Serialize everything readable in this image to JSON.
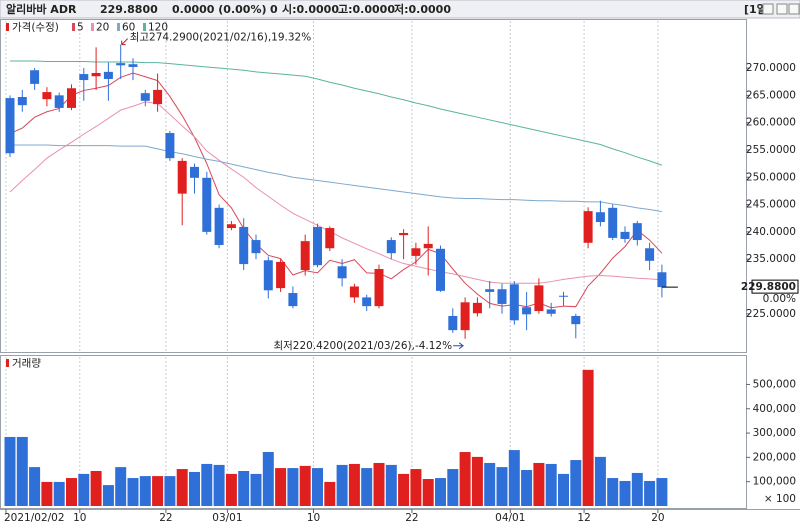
{
  "header": {
    "name": "알리바바 ADR",
    "price": "229.8800",
    "change": "0.0000 (0.00%)",
    "volume": "0",
    "open": "시:0.0000",
    "high": "고:0.0000",
    "low": "저:0.0000",
    "period": "[1일]"
  },
  "chart_data": [
    {
      "type": "candlestick",
      "legend_title": "가격(수정)",
      "up_color": "#e0201f",
      "down_color": "#2f6fd8",
      "open": [
        264.5,
        264.7,
        269.6,
        264.3,
        265,
        262.7,
        268.9,
        268.5,
        269.3,
        270.9,
        270.7,
        265.4,
        263.4,
        258.1,
        247,
        251.9,
        249.9,
        244.4,
        240.7,
        240.9,
        238.5,
        234.8,
        229.7,
        228.8,
        233,
        240.9,
        237,
        233.7,
        228,
        228,
        226.4,
        238.5,
        239.4,
        235.6,
        237,
        236.9,
        224.6,
        222,
        225.1,
        229.5,
        229.5,
        230.4,
        226.2,
        225.5,
        225.8,
        228.3,
        224.6,
        238,
        243.6,
        244.4,
        240,
        241.6,
        237,
        232.6
      ],
      "high": [
        265,
        266,
        270,
        266.5,
        265.5,
        267,
        270,
        273.8,
        271,
        274.29,
        271.8,
        266,
        269,
        258.5,
        253.5,
        252.5,
        251,
        245,
        242,
        242.5,
        239.5,
        235.5,
        235,
        230,
        239.5,
        241.5,
        241,
        235,
        230.5,
        228.5,
        234,
        239,
        240.5,
        238,
        241,
        237.5,
        226,
        228,
        228,
        231,
        230.5,
        231,
        229,
        231.5,
        227,
        229,
        225,
        244.5,
        245.7,
        245,
        241,
        242,
        238,
        234
      ],
      "low": [
        253.7,
        262,
        266,
        263,
        262,
        262.3,
        264,
        266,
        264,
        268,
        267.8,
        263,
        262,
        253,
        241.2,
        247,
        239.5,
        237,
        240.3,
        233,
        235,
        227.8,
        229,
        226,
        232,
        233.5,
        236.5,
        230,
        227,
        225.5,
        226,
        235,
        235,
        234,
        232,
        229,
        221.5,
        220.42,
        224.5,
        226,
        225,
        223,
        222,
        225,
        224.5,
        226.5,
        220.5,
        237,
        241,
        238.5,
        238,
        237.5,
        233,
        228
      ],
      "close": [
        254.4,
        263.2,
        267.1,
        265.6,
        262.7,
        266.3,
        267.8,
        269.1,
        268,
        270.5,
        270.2,
        264,
        266,
        253.5,
        253,
        249.9,
        240,
        237.6,
        241.4,
        234.1,
        236.1,
        229.3,
        234.5,
        226.4,
        238.3,
        233.9,
        240.7,
        231.5,
        230,
        226.4,
        233.2,
        236.1,
        239.8,
        237,
        237.8,
        229.2,
        222,
        227.1,
        227,
        229,
        226.8,
        223.8,
        224.9,
        230.2,
        225,
        228.2,
        223.1,
        243.8,
        241.8,
        238.9,
        238.7,
        238.5,
        234.7,
        229.88
      ],
      "series": [
        {
          "name": "5",
          "color": "#d9485a",
          "values": [
            258,
            259,
            261,
            262,
            262.6,
            265,
            265.9,
            266.3,
            266.8,
            268.3,
            269.1,
            268.4,
            267.7,
            264.8,
            261.3,
            257.3,
            252.5,
            246.8,
            244.4,
            240.6,
            237.8,
            235.7,
            235.1,
            232.1,
            232.9,
            232.5,
            234.8,
            234.2,
            234.9,
            232.5,
            232.4,
            231.4,
            233.1,
            234.5,
            236.8,
            236,
            233.2,
            230.6,
            228.6,
            226.9,
            226.4,
            226.7,
            226.3,
            227,
            226.1,
            226.4,
            226.3,
            230.1,
            232.4,
            235.2,
            237.3,
            240.3,
            238.5,
            236.1
          ]
        },
        {
          "name": "20",
          "color": "#e890b0",
          "values": [
            247.3,
            249.4,
            251.4,
            253.5,
            255,
            256.4,
            257.9,
            259.3,
            260.8,
            262.3,
            263,
            263.8,
            263.5,
            261.5,
            259.4,
            257.4,
            254.8,
            253.1,
            251.5,
            250,
            248.1,
            246.5,
            244.9,
            243.4,
            242.3,
            241.2,
            240.1,
            238.9,
            237.9,
            236.9,
            236,
            235,
            234.2,
            233.7,
            233.2,
            232.7,
            232.3,
            231.8,
            231.3,
            230.8,
            230.6,
            230.6,
            230.6,
            230.6,
            230.9,
            231.3,
            231.6,
            231.9,
            232,
            231.9,
            231.7,
            231.5,
            231.4,
            231.2
          ]
        },
        {
          "name": "60",
          "color": "#7fa8cc",
          "values": [
            255.9,
            255.9,
            255.9,
            255.9,
            255.8,
            255.8,
            255.8,
            255.8,
            255.8,
            255.7,
            255.7,
            255.7,
            255.2,
            254.7,
            254.3,
            253.8,
            253.3,
            252.9,
            252.4,
            251.9,
            251.4,
            250.9,
            250.5,
            250,
            249.7,
            249.4,
            249.1,
            248.8,
            248.5,
            248.2,
            247.9,
            247.6,
            247.3,
            247,
            246.7,
            246.4,
            246.2,
            246.1,
            246.1,
            246,
            245.9,
            245.9,
            245.8,
            245.7,
            245.7,
            245.6,
            245.6,
            245.5,
            245.5,
            245.1,
            244.8,
            244.4,
            244.1,
            243.7
          ]
        },
        {
          "name": "120",
          "color": "#5ab4a0",
          "values": [
            271.3,
            271.3,
            271.3,
            271.2,
            271.2,
            271.2,
            271.2,
            271.1,
            271.1,
            271.1,
            271.1,
            271,
            271,
            270.8,
            270.6,
            270.4,
            270.2,
            270,
            269.8,
            269.6,
            269.3,
            269.1,
            268.9,
            268.7,
            268.5,
            268,
            267.4,
            266.9,
            266.3,
            265.8,
            265.3,
            264.7,
            264.2,
            263.6,
            263.1,
            262.5,
            262,
            261.5,
            261,
            260.5,
            260,
            259.5,
            259,
            258.5,
            258,
            257.5,
            257,
            256.5,
            256,
            255.2,
            254.5,
            253.7,
            253,
            252.2
          ]
        }
      ],
      "ylim": [
        218,
        278.8
      ],
      "yticks": [
        {
          "value": 225,
          "label": "225.0000"
        },
        {
          "value": 235,
          "label": "235.0000"
        },
        {
          "value": 240,
          "label": "240.0000"
        },
        {
          "value": 245,
          "label": "245.0000"
        },
        {
          "value": 250,
          "label": "250.0000"
        },
        {
          "value": 255,
          "label": "255.0000"
        },
        {
          "value": 260,
          "label": "260.0000"
        },
        {
          "value": 265,
          "label": "265.0000"
        },
        {
          "value": 270,
          "label": "270.0000"
        }
      ],
      "annotations": [
        {
          "text": "최고274.2900(2021/02/16),19.32%",
          "index": 9,
          "at": "high"
        },
        {
          "text": "최저220.4200(2021/03/26),-4.12%",
          "index": 37,
          "at": "low"
        }
      ],
      "current_price": {
        "value": 229.88,
        "label": "229.8800"
      },
      "current_change": {
        "value": 0,
        "label": "0.00%"
      }
    },
    {
      "type": "bar",
      "title": "거래량",
      "color": "#e0201f",
      "categories": [
        "2021/02/02",
        null,
        null,
        null,
        null,
        null,
        "10",
        null,
        null,
        null,
        null,
        null,
        null,
        "22",
        null,
        null,
        null,
        null,
        "03/01",
        null,
        null,
        null,
        null,
        null,
        null,
        "10",
        null,
        null,
        null,
        null,
        null,
        null,
        null,
        "22",
        null,
        null,
        null,
        null,
        null,
        null,
        null,
        "04/01",
        null,
        null,
        null,
        null,
        null,
        "12",
        null,
        null,
        null,
        null,
        null,
        "20"
      ],
      "values": [
        284000,
        284000,
        160000,
        99000,
        99000,
        115000,
        132000,
        144000,
        86000,
        160000,
        115000,
        123000,
        123000,
        123000,
        152000,
        140000,
        173000,
        169000,
        132000,
        144000,
        132000,
        222000,
        156000,
        156000,
        165000,
        156000,
        99000,
        169000,
        173000,
        156000,
        177000,
        169000,
        132000,
        152000,
        111000,
        115000,
        152000,
        222000,
        202000,
        177000,
        160000,
        230000,
        148000,
        177000,
        173000,
        132000,
        189000,
        560000,
        202000,
        115000,
        103000,
        136000,
        103000,
        115000
      ],
      "ylim": [
        0,
        617000
      ],
      "yticks": [
        {
          "value": 100000,
          "label": "100,000"
        },
        {
          "value": 200000,
          "label": "200,000"
        },
        {
          "value": 300000,
          "label": "300,000"
        },
        {
          "value": 400000,
          "label": "400,000"
        },
        {
          "value": 500000,
          "label": "500,000"
        }
      ],
      "unit_label": "× 100"
    }
  ]
}
